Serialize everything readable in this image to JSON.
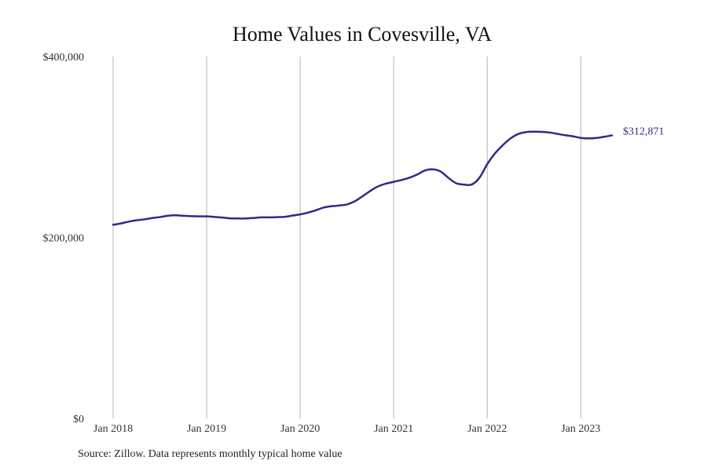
{
  "chart_data": {
    "type": "line",
    "title": "Home Values in Covesville, VA",
    "source": "Source: Zillow. Data represents monthly typical home value",
    "ylim": [
      0,
      400000
    ],
    "y_ticks": [
      {
        "value": 0,
        "label": "$0"
      },
      {
        "value": 200000,
        "label": "$200,000"
      },
      {
        "value": 400000,
        "label": "$400,000"
      }
    ],
    "xlim": [
      "2018-01",
      "2023-05"
    ],
    "x_ticks": [
      {
        "value": "2018-01",
        "label": "Jan 2018"
      },
      {
        "value": "2019-01",
        "label": "Jan 2019"
      },
      {
        "value": "2020-01",
        "label": "Jan 2020"
      },
      {
        "value": "2021-01",
        "label": "Jan 2021"
      },
      {
        "value": "2022-01",
        "label": "Jan 2022"
      },
      {
        "value": "2023-01",
        "label": "Jan 2023"
      }
    ],
    "grid": "vertical",
    "line_color": "#2e2a8c",
    "end_label": "$312,871",
    "series": [
      {
        "x": [
          "2018-01",
          "2018-02",
          "2018-03",
          "2018-04",
          "2018-05",
          "2018-06",
          "2018-07",
          "2018-08",
          "2018-09",
          "2018-10",
          "2018-11",
          "2018-12",
          "2019-01",
          "2019-02",
          "2019-03",
          "2019-04",
          "2019-05",
          "2019-06",
          "2019-07",
          "2019-08",
          "2019-09",
          "2019-10",
          "2019-11",
          "2019-12",
          "2020-01",
          "2020-02",
          "2020-03",
          "2020-04",
          "2020-05",
          "2020-06",
          "2020-07",
          "2020-08",
          "2020-09",
          "2020-10",
          "2020-11",
          "2020-12",
          "2021-01",
          "2021-02",
          "2021-03",
          "2021-04",
          "2021-05",
          "2021-06",
          "2021-07",
          "2021-08",
          "2021-09",
          "2021-10",
          "2021-11",
          "2021-12",
          "2022-01",
          "2022-02",
          "2022-03",
          "2022-04",
          "2022-05",
          "2022-06",
          "2022-07",
          "2022-08",
          "2022-09",
          "2022-10",
          "2022-11",
          "2022-12",
          "2023-01",
          "2023-02",
          "2023-03",
          "2023-04",
          "2023-05"
        ],
        "y": [
          214000,
          215500,
          217500,
          219000,
          220000,
          221500,
          222500,
          224000,
          224500,
          224000,
          223500,
          223300,
          223300,
          222700,
          222000,
          221200,
          221000,
          221000,
          221500,
          222200,
          222200,
          222500,
          222800,
          224200,
          225500,
          227500,
          230000,
          233000,
          234500,
          235300,
          236500,
          240000,
          245500,
          251500,
          256500,
          259500,
          261500,
          263500,
          266000,
          269500,
          274000,
          275300,
          273000,
          266000,
          260000,
          258500,
          258500,
          266000,
          281000,
          293000,
          302000,
          309500,
          314500,
          316500,
          316900,
          316700,
          316000,
          314500,
          313000,
          311800,
          310000,
          309500,
          310000,
          311300,
          312871
        ]
      }
    ]
  }
}
